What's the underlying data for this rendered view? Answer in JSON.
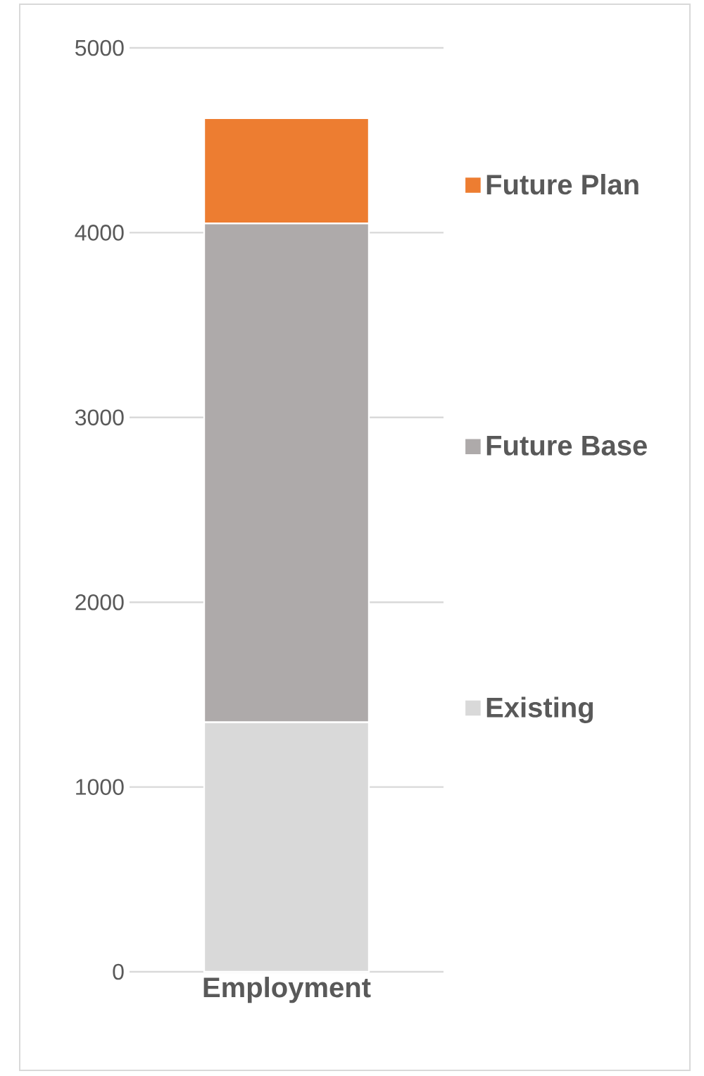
{
  "chart_data": {
    "type": "bar",
    "stacked": true,
    "categories": [
      "Employment"
    ],
    "series": [
      {
        "name": "Existing",
        "color": "#d9d9d9",
        "values": [
          1350
        ]
      },
      {
        "name": "Future Base",
        "color": "#aeaaaa",
        "values": [
          2700
        ]
      },
      {
        "name": "Future Plan",
        "color": "#ed7d31",
        "values": [
          570
        ]
      }
    ],
    "ylim": [
      0,
      5000
    ],
    "yticks": [
      0,
      1000,
      2000,
      3000,
      4000,
      5000
    ],
    "grid": "y",
    "legend": "right"
  }
}
